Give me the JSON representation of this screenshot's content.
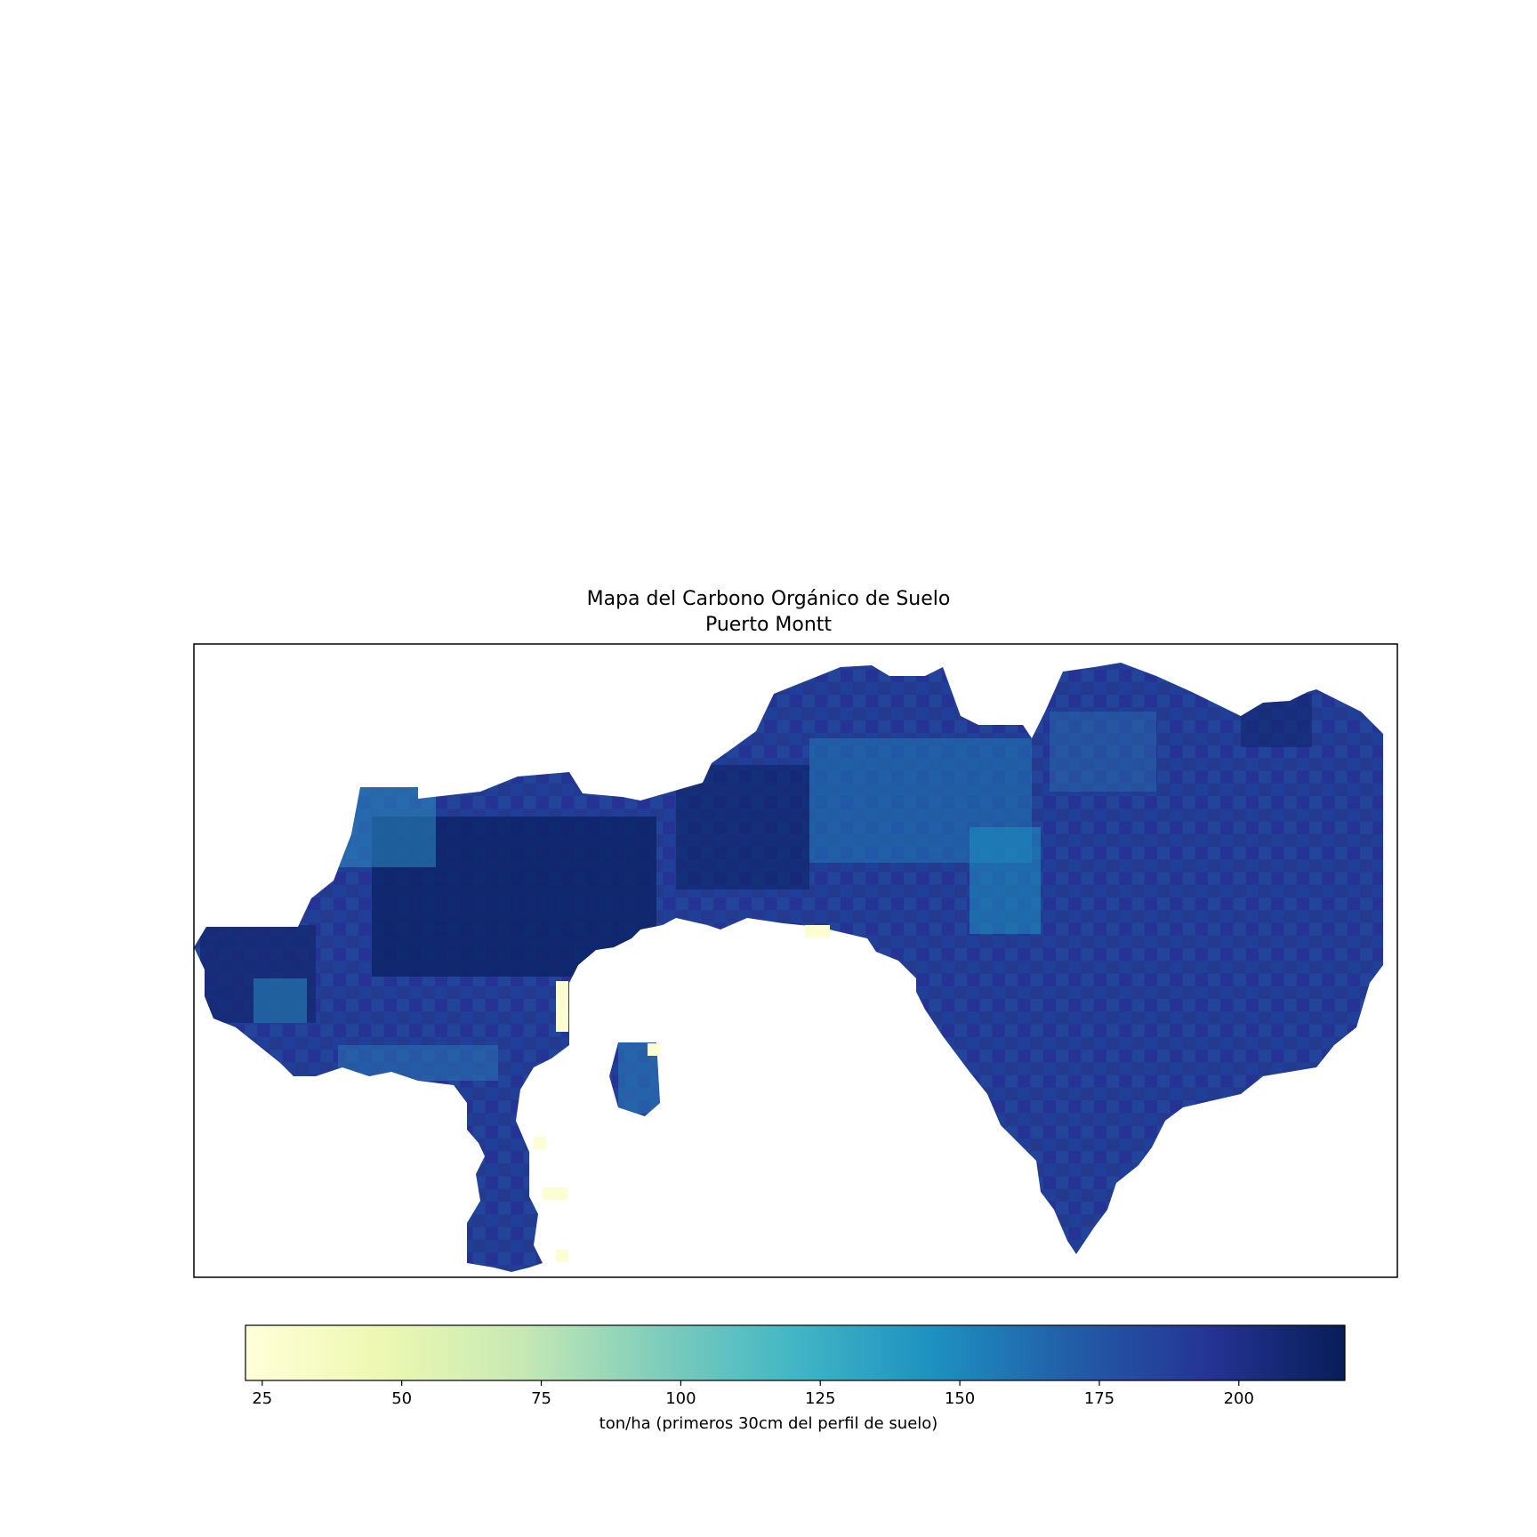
{
  "title": "Mapa del Carbono Orgánico de Suelo",
  "subtitle": "Puerto Montt",
  "colorbar": {
    "label": "ton/ha (primeros 30cm del perfil de suelo)",
    "range": [
      22,
      219
    ],
    "ticks": [
      "25",
      "50",
      "75",
      "100",
      "125",
      "150",
      "175",
      "200"
    ],
    "tick_values": [
      25,
      50,
      75,
      100,
      125,
      150,
      175,
      200
    ],
    "colormap": "YlGnBu",
    "stops": [
      "#ffffd9",
      "#edf8b1",
      "#c7e9b4",
      "#7fcdbb",
      "#41b6c4",
      "#1d91c0",
      "#225ea8",
      "#253494",
      "#081d58"
    ]
  },
  "chart_data": {
    "type": "heatmap",
    "title": "Mapa del Carbono Orgánico de Suelo",
    "subtitle": "Puerto Montt",
    "zlabel": "ton/ha (primeros 30cm del perfil de suelo)",
    "zlim": [
      22,
      219
    ],
    "grid": false,
    "colorbar_placement": "bottom",
    "dominant_values": "mostly 165–215 ton/ha, with lighter zones near 140–150 ton/ha and a few cells near 25 ton/ha"
  }
}
